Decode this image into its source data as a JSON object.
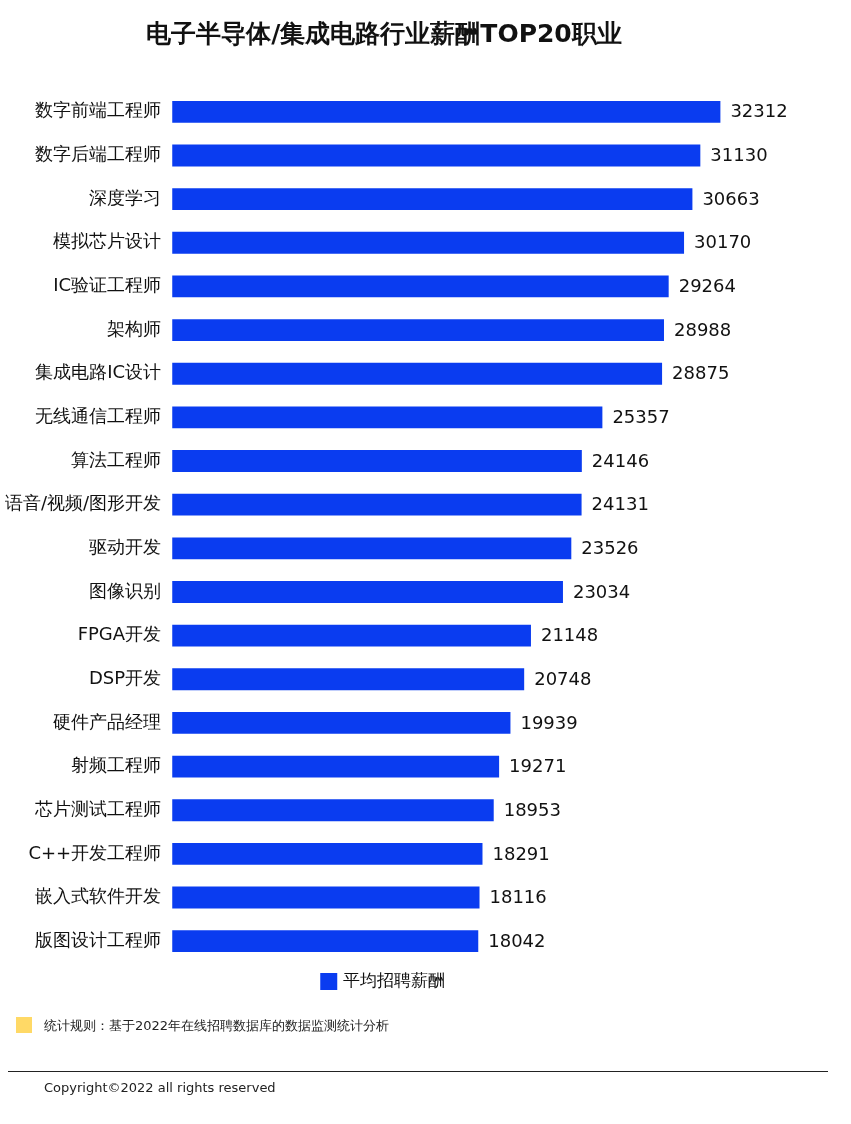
{
  "chart_data": {
    "type": "bar",
    "orientation": "horizontal",
    "title": "电子半导体/集成电路行业薪酬TOP20职业",
    "categories": [
      "数字前端工程师",
      "数字后端工程师",
      "深度学习",
      "模拟芯片设计",
      "IC验证工程师",
      "架构师",
      "集成电路IC设计",
      "无线通信工程师",
      "算法工程师",
      "语音/视频/图形开发",
      "驱动开发",
      "图像识别",
      "FPGA开发",
      "DSP开发",
      "硬件产品经理",
      "射频工程师",
      "芯片测试工程师",
      "C++开发工程师",
      "嵌入式软件开发",
      "版图设计工程师"
    ],
    "series": [
      {
        "name": "平均招聘薪酬",
        "color": "#0a3cf0",
        "values": [
          32312,
          31130,
          30663,
          30170,
          29264,
          28988,
          28875,
          25357,
          24146,
          24131,
          23526,
          23034,
          21148,
          20748,
          19939,
          19271,
          18953,
          18291,
          18116,
          18042
        ]
      }
    ],
    "data_labels": true,
    "legend": "bottom",
    "tick_labels": "y",
    "annotations": [
      "统计规则：基于2022年在线招聘数据库的数据监测统计分析",
      "Copyright©2022 all rights reserved"
    ]
  }
}
